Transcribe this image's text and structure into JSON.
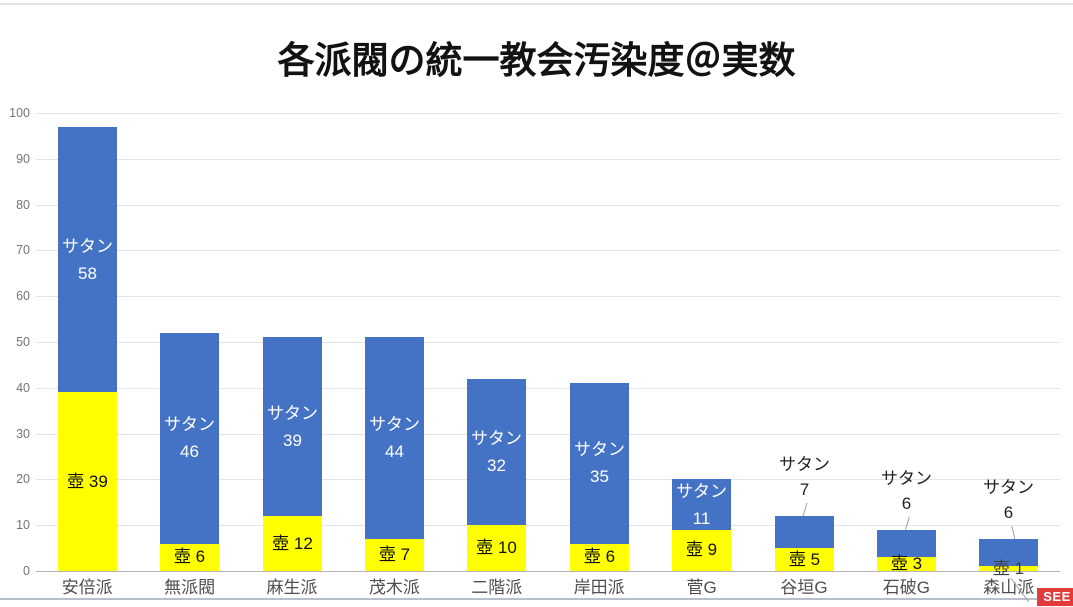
{
  "chart_data": {
    "type": "bar",
    "stacked": true,
    "title": "各派閥の統一教会汚染度＠実数",
    "categories": [
      "安倍派",
      "無派閥",
      "麻生派",
      "茂木派",
      "二階派",
      "岸田派",
      "菅G",
      "谷垣G",
      "石破G",
      "森山派"
    ],
    "series": [
      {
        "name": "壺",
        "color": "#ffff00",
        "label_color": "#111111",
        "values": [
          39,
          6,
          12,
          7,
          10,
          6,
          9,
          5,
          3,
          1
        ]
      },
      {
        "name": "サタン",
        "color": "#4472c4",
        "label_color": "#ffffff",
        "values": [
          58,
          46,
          39,
          44,
          32,
          35,
          11,
          7,
          6,
          6
        ]
      }
    ],
    "totals": [
      97,
      52,
      51,
      51,
      42,
      41,
      20,
      12,
      9,
      7
    ],
    "xlabel": "",
    "ylabel": "",
    "ylim": [
      0,
      100
    ],
    "yticks": [
      0,
      10,
      20,
      30,
      40,
      50,
      60,
      70,
      80,
      90,
      100
    ],
    "grid": "horizontal-only",
    "legend_position": "none",
    "satan_label_outside_categories": [
      "谷垣G",
      "石破G",
      "森山派"
    ],
    "tsubo_label_outside_categories": [
      "森山派"
    ],
    "axis_label_color": "#757575",
    "category_label_color": "#4f4f4f",
    "gridline_color": "#e4e4e4",
    "baseline_color": "#b5b5b5",
    "leader_line_color": "#9aa0a6"
  },
  "frame": {
    "top_line_color": "#e2e2e2",
    "bottom_line_color": "#b9bfc7"
  },
  "overlay": {
    "see_label": "SEE",
    "see_bg": "#e23b3c"
  }
}
